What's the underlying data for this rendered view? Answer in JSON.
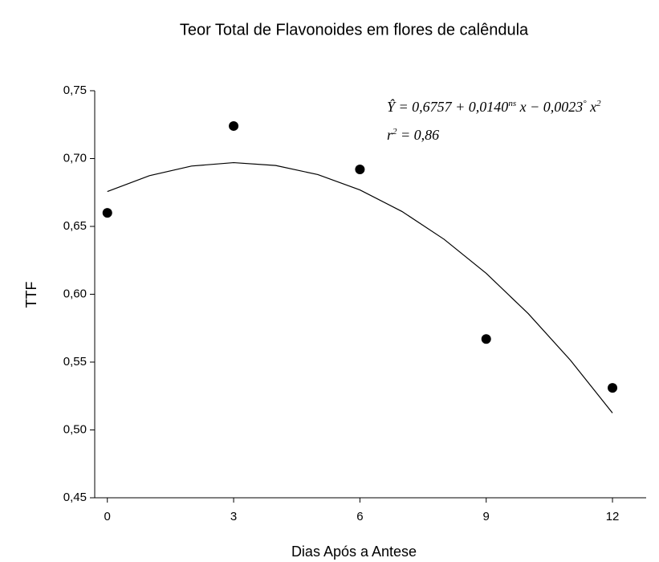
{
  "chart_data": {
    "type": "scatter",
    "title": "Teor Total de Flavonoides em flores de calêndula",
    "x_label": "Dias Após a Antese",
    "y_label": "TTF",
    "x": [
      0,
      3,
      6,
      9,
      12
    ],
    "values": [
      0.66,
      0.724,
      0.692,
      0.567,
      0.531
    ],
    "color": "#000000",
    "curve": {
      "x": [
        0,
        1,
        2,
        3,
        4,
        5,
        6,
        7,
        8,
        9,
        10,
        11,
        12
      ],
      "values": [
        0.6757,
        0.6874,
        0.6945,
        0.697,
        0.6949,
        0.6882,
        0.6769,
        0.661,
        0.6405,
        0.6154,
        0.5857,
        0.5514,
        0.5125
      ],
      "color": "#000000"
    },
    "equation": [
      "Ŷ = 0,6757 + 0,0140",
      "ns",
      " x − 0,0023",
      "°",
      " x",
      "2"
    ],
    "r_squared": [
      "r",
      "2",
      " = 0,86"
    ],
    "xlim": [
      -0.3,
      12.8
    ],
    "xticks": [
      0,
      3,
      6,
      9,
      12
    ],
    "ylim": [
      0.45,
      0.75
    ],
    "yticks": [
      {
        "value": 0.45,
        "label": "0,45"
      },
      {
        "value": 0.5,
        "label": "0,50"
      },
      {
        "value": 0.55,
        "label": "0,55"
      },
      {
        "value": 0.6,
        "label": "0,60"
      },
      {
        "value": 0.65,
        "label": "0,65"
      },
      {
        "value": 0.7,
        "label": "0,70"
      },
      {
        "value": 0.75,
        "label": "0,75"
      }
    ],
    "grid": false
  }
}
